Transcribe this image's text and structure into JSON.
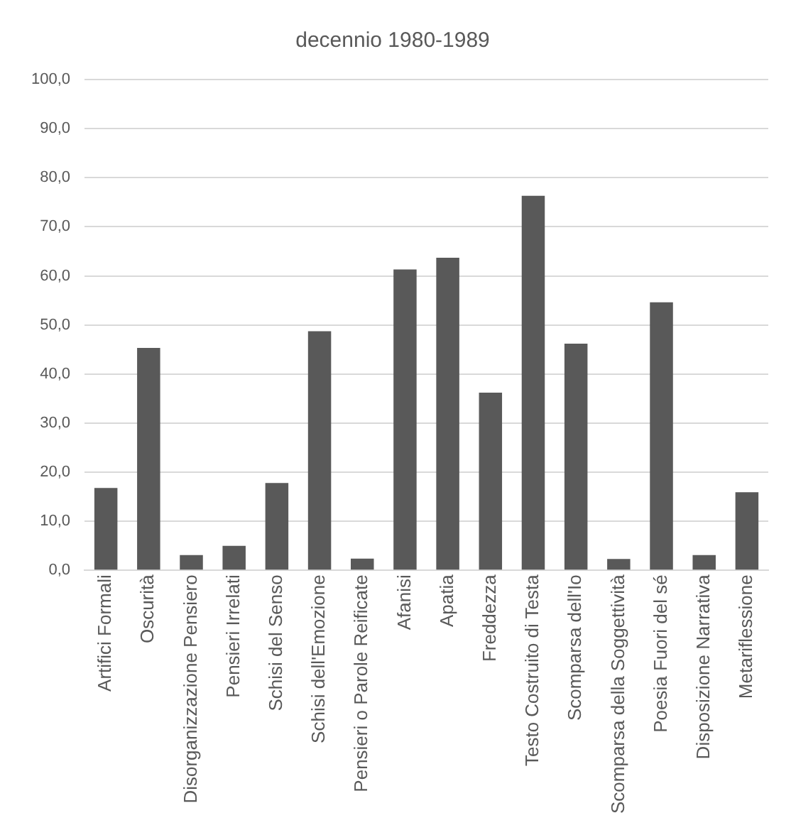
{
  "chart_data": {
    "type": "bar",
    "title": "decennio 1980-1989",
    "categories": [
      "Artifici Formali",
      "Oscurità",
      "Disorganizzazione Pensiero",
      "Pensieri Irrelati",
      "Schisi del Senso",
      "Schisi dell'Emozione",
      "Pensieri o Parole Reificate",
      "Afanisi",
      "Apatia",
      "Freddezza",
      "Testo Costruito di Testa",
      "Scomparsa dell'Io",
      "Scomparsa della Soggettività",
      "Poesia Fuori del sé",
      "Disposizione Narrativa",
      "Metariflessione"
    ],
    "values": [
      16.8,
      45.3,
      3.1,
      5.0,
      17.8,
      48.7,
      2.4,
      61.3,
      63.7,
      36.2,
      76.3,
      46.2,
      2.3,
      54.6,
      3.1,
      15.9
    ],
    "color": "#595959",
    "ylim": [
      0,
      100
    ],
    "yticks": [
      {
        "value": 0,
        "label": "0,0"
      },
      {
        "value": 10,
        "label": "10,0"
      },
      {
        "value": 20,
        "label": "20,0"
      },
      {
        "value": 30,
        "label": "30,0"
      },
      {
        "value": 40,
        "label": "40,0"
      },
      {
        "value": 50,
        "label": "50,0"
      },
      {
        "value": 60,
        "label": "60,0"
      },
      {
        "value": 70,
        "label": "70,0"
      },
      {
        "value": 80,
        "label": "80,0"
      },
      {
        "value": 90,
        "label": "90,0"
      },
      {
        "value": 100,
        "label": "100,0"
      }
    ],
    "grid": "y"
  }
}
